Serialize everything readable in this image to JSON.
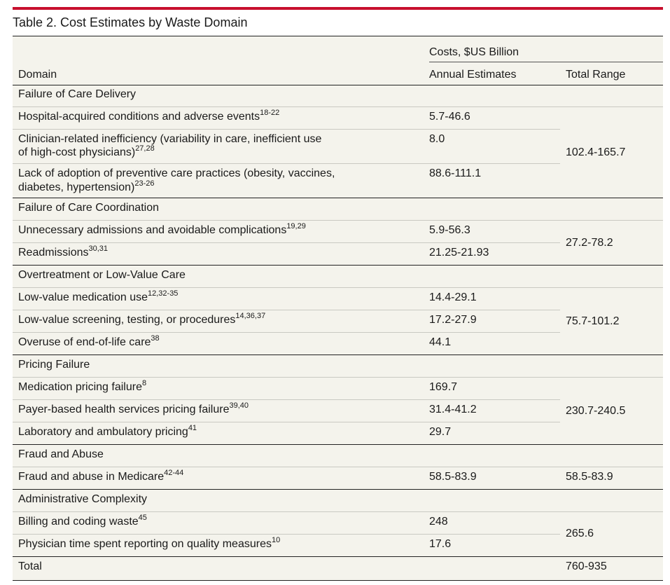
{
  "title": "Table 2. Cost Estimates by Waste Domain",
  "colors": {
    "accent_bar": "#c8102e",
    "table_bg": "#f4f3ec",
    "rule": "#222222"
  },
  "header": {
    "domain": "Domain",
    "costs_group": "Costs, $US Billion",
    "annual": "Annual Estimates",
    "total_range": "Total Range"
  },
  "sections": [
    {
      "name": "Failure of Care Delivery",
      "total_range": "102.4-165.7",
      "rows": [
        {
          "label": "Hospital-acquired conditions and adverse events",
          "refs": "18-22",
          "annual": "5.7-46.6"
        },
        {
          "label_line1": "Clinician-related inefficiency (variability in care, inefficient use",
          "label_line2": "of high-cost physicians)",
          "refs": "27,28",
          "annual": "8.0"
        },
        {
          "label_line1": "Lack of adoption of preventive care practices (obesity, vaccines,",
          "label_line2": "diabetes, hypertension)",
          "refs": "23-26",
          "annual": "88.6-111.1"
        }
      ]
    },
    {
      "name": "Failure of Care Coordination",
      "total_range": "27.2-78.2",
      "rows": [
        {
          "label": "Unnecessary admissions and avoidable complications",
          "refs": "19,29",
          "annual": "5.9-56.3"
        },
        {
          "label": "Readmissions",
          "refs": "30,31",
          "annual": "21.25-21.93"
        }
      ]
    },
    {
      "name": "Overtreatment or Low-Value Care",
      "total_range": "75.7-101.2",
      "rows": [
        {
          "label": "Low-value medication use",
          "refs": "12,32-35",
          "annual": "14.4-29.1"
        },
        {
          "label": "Low-value screening, testing, or procedures",
          "refs": "14,36,37",
          "annual": "17.2-27.9"
        },
        {
          "label": "Overuse of end-of-life care",
          "refs": "38",
          "annual": "44.1"
        }
      ]
    },
    {
      "name": "Pricing Failure",
      "total_range": "230.7-240.5",
      "rows": [
        {
          "label": "Medication pricing failure",
          "refs": "8",
          "annual": "169.7"
        },
        {
          "label": "Payer-based health services pricing failure",
          "refs": "39,40",
          "annual": "31.4-41.2"
        },
        {
          "label": "Laboratory and ambulatory pricing",
          "refs": "41",
          "annual": "29.7"
        }
      ]
    },
    {
      "name": "Fraud and Abuse",
      "total_range": "58.5-83.9",
      "rows": [
        {
          "label": "Fraud and abuse in Medicare",
          "refs": "42-44",
          "annual": "58.5-83.9"
        }
      ]
    },
    {
      "name": "Administrative Complexity",
      "total_range": "265.6",
      "rows": [
        {
          "label": "Billing and coding waste",
          "refs": "45",
          "annual": "248"
        },
        {
          "label": "Physician time spent reporting on quality measures",
          "refs": "10",
          "annual": "17.6"
        }
      ]
    }
  ],
  "total": {
    "label": "Total",
    "range": "760-935"
  }
}
